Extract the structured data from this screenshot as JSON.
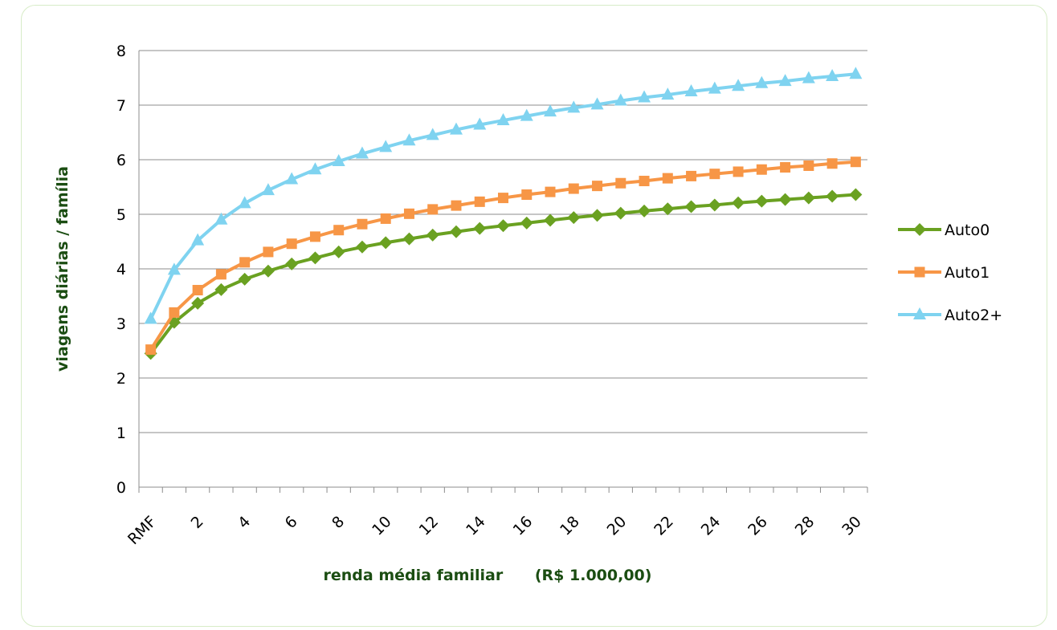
{
  "chart_data": {
    "type": "line",
    "title": "",
    "xlabel": "renda média familiar      (R$ 1.000,00)",
    "ylabel": "viagens diárias / família",
    "ylim": [
      0,
      8
    ],
    "yticks": [
      "0",
      "1",
      "2",
      "3",
      "4",
      "5",
      "6",
      "7",
      "8"
    ],
    "xtick_labels": [
      "RMF",
      "2",
      "4",
      "6",
      "8",
      "10",
      "12",
      "14",
      "16",
      "18",
      "20",
      "22",
      "24",
      "26",
      "28",
      "30"
    ],
    "grid": "horizontal",
    "legend_position": "right",
    "x": [
      "RMF",
      "1",
      "2",
      "3",
      "4",
      "5",
      "6",
      "7",
      "8",
      "9",
      "10",
      "11",
      "12",
      "13",
      "14",
      "15",
      "16",
      "17",
      "18",
      "19",
      "20",
      "21",
      "22",
      "23",
      "24",
      "25",
      "26",
      "27",
      "28",
      "29",
      "30"
    ],
    "series": [
      {
        "name": "Auto0",
        "color": "#6aa121",
        "marker": "diamond",
        "values": [
          2.45,
          3.02,
          3.37,
          3.62,
          3.81,
          3.96,
          4.09,
          4.2,
          4.31,
          4.4,
          4.48,
          4.55,
          4.62,
          4.68,
          4.74,
          4.79,
          4.84,
          4.89,
          4.94,
          4.98,
          5.02,
          5.06,
          5.1,
          5.14,
          5.17,
          5.21,
          5.24,
          5.27,
          5.3,
          5.33,
          5.36
        ]
      },
      {
        "name": "Auto1",
        "color": "#f79646",
        "marker": "square",
        "values": [
          2.52,
          3.2,
          3.61,
          3.9,
          4.12,
          4.31,
          4.46,
          4.59,
          4.71,
          4.82,
          4.92,
          5.01,
          5.09,
          5.16,
          5.23,
          5.3,
          5.36,
          5.41,
          5.47,
          5.52,
          5.57,
          5.61,
          5.66,
          5.7,
          5.74,
          5.78,
          5.82,
          5.86,
          5.89,
          5.93,
          5.96
        ]
      },
      {
        "name": "Auto2+",
        "color": "#7fd3f0",
        "marker": "triangle",
        "values": [
          3.08,
          3.98,
          4.52,
          4.9,
          5.2,
          5.44,
          5.64,
          5.82,
          5.97,
          6.11,
          6.23,
          6.35,
          6.45,
          6.55,
          6.64,
          6.72,
          6.8,
          6.88,
          6.95,
          7.01,
          7.08,
          7.14,
          7.19,
          7.25,
          7.3,
          7.35,
          7.4,
          7.44,
          7.49,
          7.53,
          7.57
        ]
      }
    ]
  }
}
